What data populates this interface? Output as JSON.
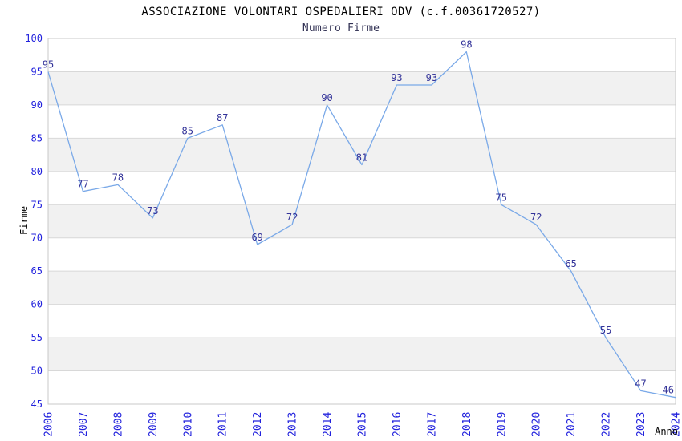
{
  "chart_data": {
    "type": "line",
    "title": "ASSOCIAZIONE VOLONTARI OSPEDALIERI ODV (c.f.00361720527)",
    "subtitle": "Numero Firme",
    "xlabel": "Anno",
    "ylabel": "Firme",
    "categories": [
      "2006",
      "2007",
      "2008",
      "2009",
      "2010",
      "2011",
      "2012",
      "2013",
      "2014",
      "2015",
      "2016",
      "2017",
      "2018",
      "2019",
      "2020",
      "2021",
      "2022",
      "2023",
      "2024"
    ],
    "values": [
      95,
      77,
      78,
      73,
      85,
      87,
      69,
      72,
      90,
      81,
      93,
      93,
      98,
      75,
      72,
      65,
      55,
      47,
      46
    ],
    "ylim": [
      45,
      100
    ],
    "ytick_step": 5,
    "grid": true,
    "alternating_bands": true,
    "legend": "none",
    "colors": {
      "line": "#7aa9e8",
      "point_label": "#333399",
      "tick_label": "#2222dd",
      "title": "#000000",
      "subtitle": "#333355",
      "axis_title": "#000000",
      "band": "#f1f1f1",
      "grid": "#d8d8d8",
      "border": "#c8c8c8",
      "plot_background": "#ffffff"
    }
  }
}
